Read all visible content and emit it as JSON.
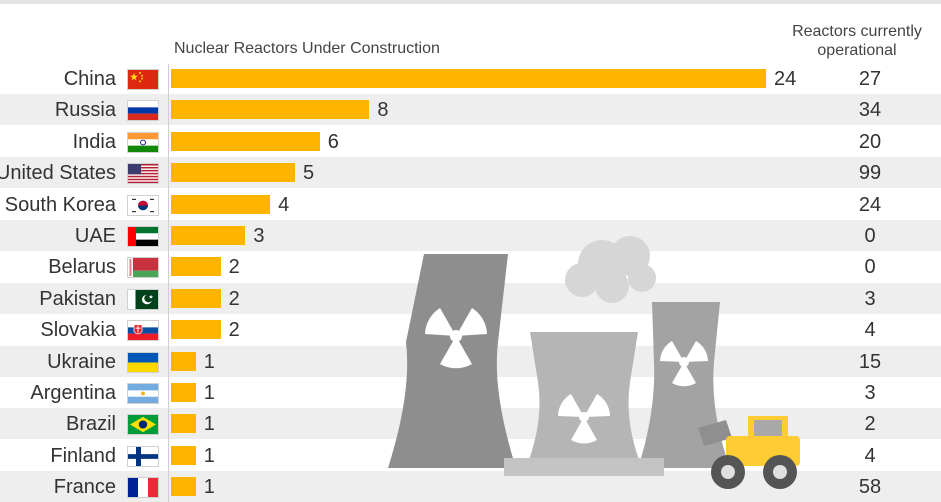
{
  "chart_data": {
    "type": "bar",
    "orientation": "horizontal",
    "title": "",
    "series_label": "Nuclear Reactors Under Construction",
    "secondary_label": "Reactors currently operational",
    "categories": [
      "China",
      "Russia",
      "India",
      "United States",
      "South Korea",
      "UAE",
      "Belarus",
      "Pakistan",
      "Slovakia",
      "Ukraine",
      "Argentina",
      "Brazil",
      "Finland",
      "France"
    ],
    "values": [
      24,
      8,
      6,
      5,
      4,
      3,
      2,
      2,
      2,
      1,
      1,
      1,
      1,
      1
    ],
    "operational": [
      27,
      34,
      20,
      99,
      24,
      0,
      0,
      3,
      4,
      15,
      3,
      2,
      4,
      58
    ],
    "xlim": [
      0,
      24
    ],
    "grid": false,
    "colors": {
      "bar": "#ffb400",
      "row_alt": "#eeeeee",
      "illustration": "#c8c8c8"
    }
  },
  "flags": [
    "flag-china-icon",
    "flag-russia-icon",
    "flag-india-icon",
    "flag-united-states-icon",
    "flag-south-korea-icon",
    "flag-uae-icon",
    "flag-belarus-icon",
    "flag-pakistan-icon",
    "flag-slovakia-icon",
    "flag-ukraine-icon",
    "flag-argentina-icon",
    "flag-brazil-icon",
    "flag-finland-icon",
    "flag-france-icon"
  ],
  "illustration": "cooling-towers-with-radiation-symbols-and-bulldozer"
}
